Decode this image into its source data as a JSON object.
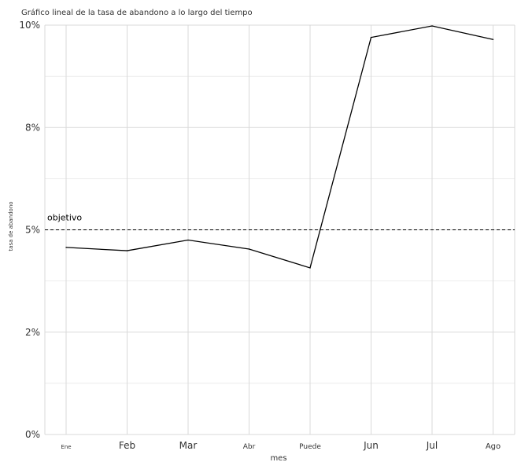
{
  "chart_data": {
    "type": "line",
    "title": "Gráfico lineal de la tasa de abandono a lo largo del tiempo",
    "xlabel": "mes",
    "ylabel": "tasa de abandono",
    "categories": [
      "Ene",
      "Feb",
      "Mar",
      "Abr",
      "Puede",
      "Jun",
      "Jul",
      "Ago"
    ],
    "series": [
      {
        "values": [
          4.57,
          4.49,
          4.75,
          4.53,
          4.07,
          9.7,
          9.98,
          9.65
        ]
      }
    ],
    "yticks": [
      0,
      2.5,
      5,
      7.5,
      10
    ],
    "ytick_labels": [
      "0%",
      "2%",
      "5%",
      "8%",
      "10%"
    ],
    "ylim": [
      0,
      10
    ],
    "grid": true,
    "reference_line": {
      "value": 5,
      "label": "objetivo",
      "style": "dashed"
    },
    "colors": {
      "line": "#000000",
      "grid": "#d9d9d9",
      "text": "#333333"
    }
  }
}
